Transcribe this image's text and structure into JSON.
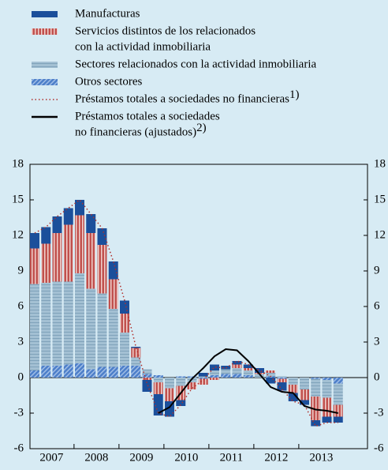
{
  "chart_data": {
    "type": "bar",
    "categories": [
      null,
      null,
      null,
      null,
      null,
      null,
      null,
      null,
      null,
      null,
      null,
      null,
      null,
      null,
      null,
      null,
      null,
      null,
      null,
      null,
      null,
      null,
      null,
      null,
      null,
      null,
      null,
      null
    ],
    "year_labels": [
      "2007",
      "2008",
      "2009",
      "2010",
      "2011",
      "2012",
      "2013"
    ],
    "ylim": [
      -6,
      18
    ],
    "yticks": [
      -6,
      -3,
      0,
      3,
      6,
      9,
      12,
      15,
      18
    ],
    "series": [
      {
        "name": [
          "Manufacturas"
        ],
        "type": "bar",
        "color": "#1b4f9b",
        "values": [
          1.3,
          1.4,
          1.4,
          1.4,
          1.3,
          1.6,
          1.4,
          1.5,
          1.1,
          0.1,
          -1.0,
          -1.8,
          -1.3,
          -0.5,
          0,
          0.3,
          0.5,
          0.3,
          0.3,
          0.3,
          0.4,
          -0.5,
          -0.7,
          -0.7,
          -0.4,
          -0.5,
          -0.5,
          -0.5
        ]
      },
      {
        "name": [
          "Servicios distintos de los relacionados",
          "con la actividad inmobiliaria"
        ],
        "type": "bar",
        "color": "#c0504d",
        "values": [
          3.0,
          3.3,
          4.1,
          4.8,
          4.9,
          4.7,
          4.1,
          2.5,
          1.6,
          0.8,
          -0.2,
          -1.0,
          -1.1,
          -1.2,
          -0.6,
          -0.5,
          -0.2,
          0,
          0.3,
          0.2,
          0.1,
          0.2,
          -0.3,
          -0.7,
          -0.9,
          -2.0,
          -1.6,
          -1.0
        ]
      },
      {
        "name": [
          "Sectores relacionados con la actividad inmobiliaria"
        ],
        "type": "bar",
        "color": "#a3c0d3",
        "values": [
          7.3,
          7.0,
          7.1,
          7.0,
          7.6,
          6.8,
          6.2,
          4.9,
          2.8,
          0.7,
          0.4,
          -0.4,
          -0.9,
          -0.7,
          -0.4,
          0.1,
          0.4,
          0.4,
          0.5,
          0.4,
          0.3,
          0.3,
          0.1,
          -0.6,
          -1.0,
          -1.5,
          -1.5,
          -1.8
        ]
      },
      {
        "name": [
          "Otros sectores"
        ],
        "type": "bar",
        "color": "#4d7fc9",
        "values": [
          0.6,
          1.0,
          1.0,
          1.1,
          1.2,
          0.7,
          0.9,
          0.9,
          1.0,
          1.0,
          0.3,
          0.2,
          0,
          0.1,
          0.1,
          -0.1,
          0.2,
          0.3,
          0.3,
          0.2,
          0,
          0.1,
          -0.1,
          0,
          0,
          -0.1,
          -0.2,
          -0.5
        ]
      },
      {
        "name": [
          "Préstamos totales a sociedades no financieras"
        ],
        "sup": "1)",
        "type": "line",
        "dash": "dotted",
        "color": "#b0302c",
        "values": [
          12.2,
          12.7,
          13.6,
          14.3,
          15.0,
          13.8,
          12.6,
          9.8,
          6.5,
          2.6,
          -0.5,
          -3.0,
          -3.3,
          -2.3,
          -0.9,
          -0.2,
          0.9,
          0.8,
          1.4,
          1.1,
          0.6,
          0.1,
          -1.0,
          -2.0,
          -2.3,
          -4.1,
          -3.8,
          -3.8
        ]
      },
      {
        "name": [
          "Préstamos totales a sociedades",
          "no financieras (ajustados)"
        ],
        "sup": "2)",
        "type": "line",
        "dash": "solid",
        "color": "#000000",
        "values": [
          null,
          null,
          null,
          null,
          null,
          null,
          null,
          null,
          null,
          null,
          null,
          -3.0,
          -2.5,
          -1.3,
          -0.1,
          0.8,
          1.8,
          2.4,
          2.3,
          1.4,
          0.3,
          -0.8,
          -1.2,
          -1.3,
          -2.4,
          -2.7,
          -2.8,
          -3.0
        ]
      }
    ]
  }
}
